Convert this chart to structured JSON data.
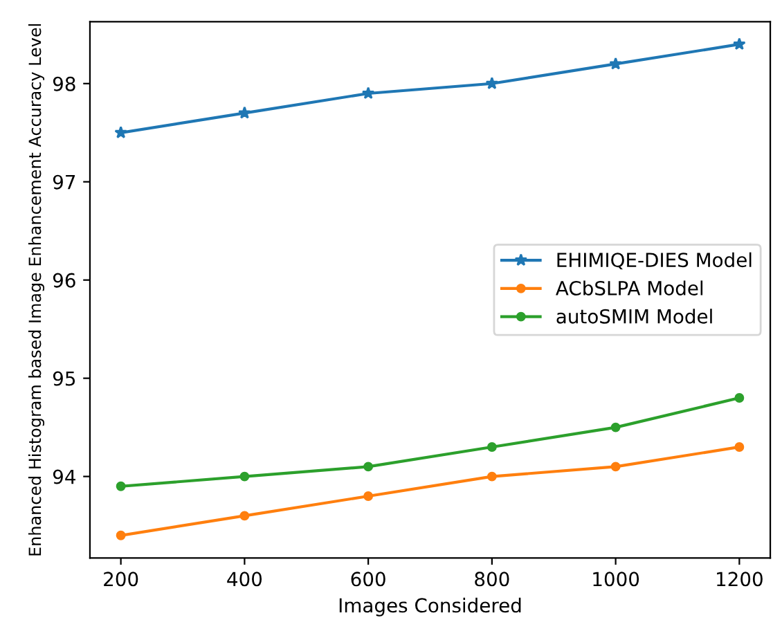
{
  "chart_data": {
    "type": "line",
    "xlabel": "Images Considered",
    "ylabel": "Enhanced Histogram based Image Enhancement Accuracy Level",
    "x": [
      200,
      400,
      600,
      800,
      1000,
      1200
    ],
    "series": [
      {
        "name": "EHIMIQE-DIES Model",
        "color": "#1f77b4",
        "marker": "star",
        "values": [
          97.5,
          97.7,
          97.9,
          98.0,
          98.2,
          98.4
        ]
      },
      {
        "name": "ACbSLPA Model",
        "color": "#ff7f0e",
        "marker": "circle",
        "values": [
          93.4,
          93.6,
          93.8,
          94.0,
          94.1,
          94.3
        ]
      },
      {
        "name": "autoSMIM Model",
        "color": "#2ca02c",
        "marker": "circle",
        "values": [
          93.9,
          94.0,
          94.1,
          94.3,
          94.5,
          94.8
        ]
      }
    ],
    "xlim": [
      150,
      1250
    ],
    "xticks": [
      200,
      400,
      600,
      800,
      1000,
      1200
    ],
    "ylim": [
      93.17,
      98.63
    ],
    "yticks": [
      94,
      95,
      96,
      97,
      98
    ],
    "grid": false,
    "legend": "center right",
    "line_style": "solid"
  }
}
